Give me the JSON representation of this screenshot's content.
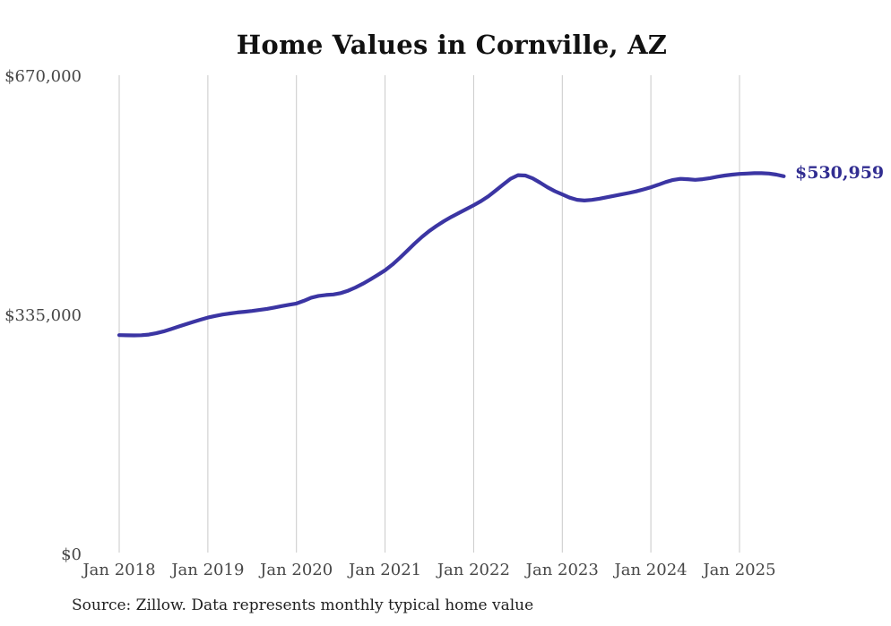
{
  "page": {
    "title": "Home Values in Cornville, AZ",
    "end_value_label": "$530,959",
    "source_note": "Source: Zillow. Data represents monthly typical home value"
  },
  "colors": {
    "background": "#ffffff",
    "line": "#3b35a3",
    "end_label": "#312d91",
    "grid": "#c9c9c9",
    "axis_text": "#474747",
    "title_text": "#111111",
    "source_text": "#1f1f1f"
  },
  "chart_data": {
    "type": "line",
    "title": "Home Values in Cornville, AZ",
    "series_name": "Monthly typical home value",
    "x_unit": "month",
    "ylim": [
      0,
      670000
    ],
    "grid": "vertical-only",
    "legend": "none",
    "last_value": 530959,
    "y_ticks": [
      {
        "value": 0,
        "label": "$0"
      },
      {
        "value": 335000,
        "label": "$335,000"
      },
      {
        "value": 670000,
        "label": "$670,000"
      }
    ],
    "x_ticks": [
      {
        "month_index": 0,
        "label": "Jan 2018"
      },
      {
        "month_index": 12,
        "label": "Jan 2019"
      },
      {
        "month_index": 24,
        "label": "Jan 2020"
      },
      {
        "month_index": 36,
        "label": "Jan 2021"
      },
      {
        "month_index": 48,
        "label": "Jan 2022"
      },
      {
        "month_index": 60,
        "label": "Jan 2023"
      },
      {
        "month_index": 72,
        "label": "Jan 2024"
      },
      {
        "month_index": 84,
        "label": "Jan 2025"
      }
    ],
    "x": [
      "2018-01",
      "2018-02",
      "2018-03",
      "2018-04",
      "2018-05",
      "2018-06",
      "2018-07",
      "2018-08",
      "2018-09",
      "2018-10",
      "2018-11",
      "2018-12",
      "2019-01",
      "2019-02",
      "2019-03",
      "2019-04",
      "2019-05",
      "2019-06",
      "2019-07",
      "2019-08",
      "2019-09",
      "2019-10",
      "2019-11",
      "2019-12",
      "2020-01",
      "2020-02",
      "2020-03",
      "2020-04",
      "2020-05",
      "2020-06",
      "2020-07",
      "2020-08",
      "2020-09",
      "2020-10",
      "2020-11",
      "2020-12",
      "2021-01",
      "2021-02",
      "2021-03",
      "2021-04",
      "2021-05",
      "2021-06",
      "2021-07",
      "2021-08",
      "2021-09",
      "2021-10",
      "2021-11",
      "2021-12",
      "2022-01",
      "2022-02",
      "2022-03",
      "2022-04",
      "2022-05",
      "2022-06",
      "2022-07",
      "2022-08",
      "2022-09",
      "2022-10",
      "2022-11",
      "2022-12",
      "2023-01",
      "2023-02",
      "2023-03",
      "2023-04",
      "2023-05",
      "2023-06",
      "2023-07",
      "2023-08",
      "2023-09",
      "2023-10",
      "2023-11",
      "2023-12",
      "2024-01",
      "2024-02",
      "2024-03",
      "2024-04",
      "2024-05",
      "2024-06",
      "2024-07",
      "2024-08",
      "2024-09",
      "2024-10",
      "2024-11",
      "2024-12",
      "2025-01",
      "2025-02",
      "2025-03",
      "2025-04",
      "2025-05",
      "2025-06",
      "2025-07"
    ],
    "values": [
      308400,
      308100,
      308000,
      308300,
      309200,
      311000,
      313600,
      316800,
      320200,
      323600,
      326900,
      330000,
      333000,
      335300,
      337200,
      338800,
      340100,
      341200,
      342300,
      343600,
      345200,
      347100,
      349000,
      350900,
      352700,
      356500,
      360900,
      363400,
      364600,
      365400,
      367300,
      370600,
      375100,
      380400,
      386300,
      392600,
      399200,
      407300,
      416600,
      426600,
      436600,
      446000,
      454300,
      461600,
      468200,
      474200,
      479600,
      484900,
      490300,
      496200,
      503000,
      511000,
      519500,
      527500,
      532500,
      532000,
      528000,
      522000,
      515500,
      510000,
      505500,
      501000,
      498000,
      497000,
      497800,
      499500,
      501500,
      503500,
      505500,
      507500,
      509800,
      512500,
      515500,
      519000,
      522800,
      525800,
      527300,
      526800,
      526000,
      526800,
      528300,
      530300,
      532000,
      533300,
      534200,
      534800,
      535200,
      535300,
      534800,
      533300,
      530959
    ]
  }
}
